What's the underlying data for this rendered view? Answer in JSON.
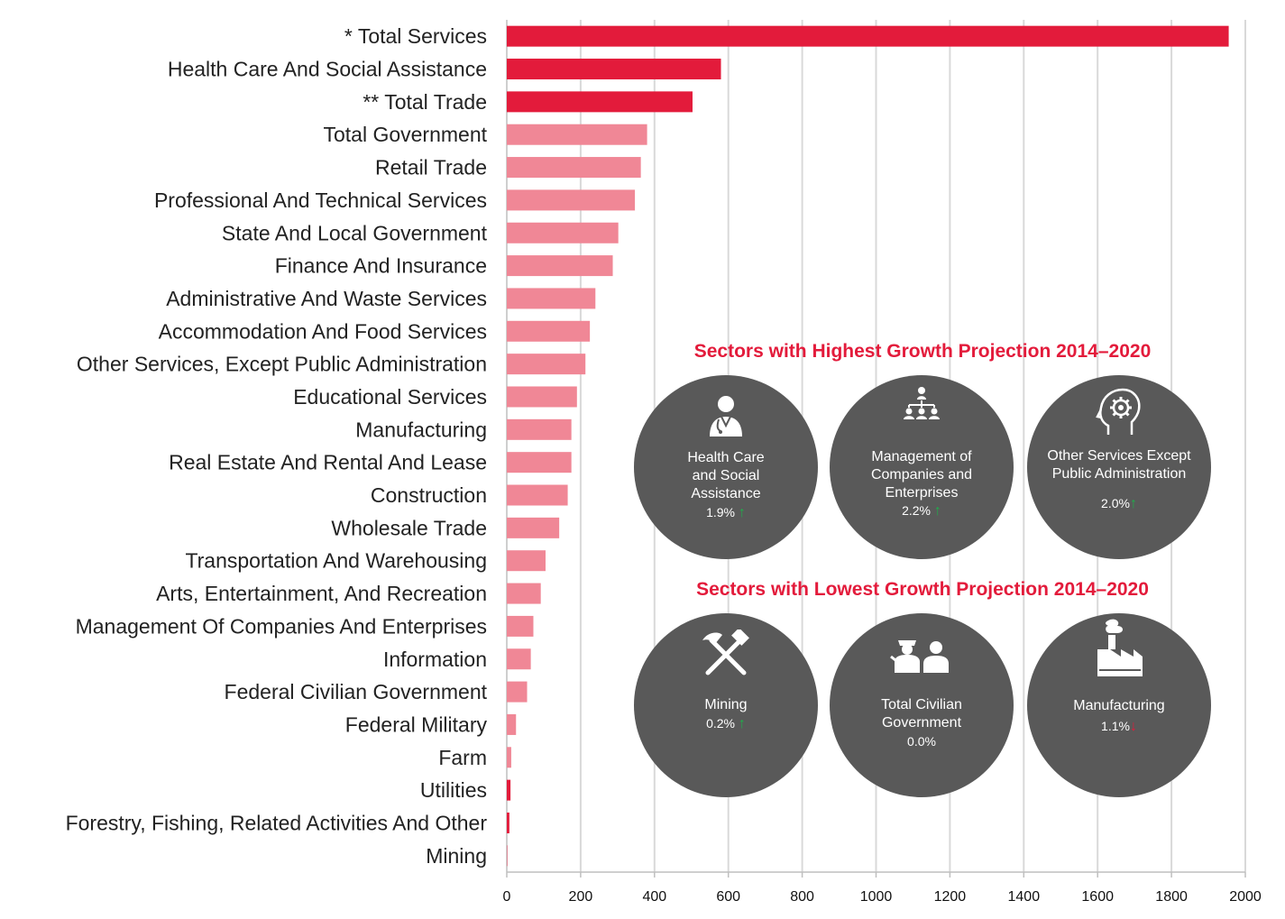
{
  "chart_data": {
    "type": "bar",
    "orientation": "horizontal",
    "categories": [
      "* Total Services",
      "Health Care And Social Assistance",
      "** Total Trade",
      "Total Government",
      "Retail Trade",
      "Professional And Technical Services",
      "State And Local Government",
      "Finance And Insurance",
      "Administrative And Waste Services",
      "Accommodation And Food Services",
      "Other Services, Except Public Administration",
      "Educational Services",
      "Manufacturing",
      "Real Estate And Rental And Lease",
      "Construction",
      "Wholesale Trade",
      "Transportation And Warehousing",
      "Arts, Entertainment, And Recreation",
      "Management Of Companies And Enterprises",
      "Information",
      "Federal Civilian Government",
      "Federal Military",
      "Farm",
      "Utilities",
      "Forestry, Fishing, Related Activities And Other",
      "Mining"
    ],
    "values": [
      1955,
      580,
      503,
      380,
      363,
      347,
      302,
      287,
      240,
      225,
      213,
      190,
      175,
      175,
      165,
      142,
      105,
      92,
      72,
      65,
      55,
      25,
      12,
      10,
      7,
      1
    ],
    "bar_colors": [
      "#e31b3b",
      "#e31b3b",
      "#e31b3b",
      "#f08796",
      "#f08796",
      "#f08796",
      "#f08796",
      "#f08796",
      "#f08796",
      "#f08796",
      "#f08796",
      "#f08796",
      "#f08796",
      "#f08796",
      "#f08796",
      "#f08796",
      "#f08796",
      "#f08796",
      "#f08796",
      "#f08796",
      "#f08796",
      "#f08796",
      "#f08796",
      "#e31b3b",
      "#e31b3b",
      "#e31b3b"
    ],
    "xlim": [
      0,
      2000
    ],
    "xticks": [
      "0",
      "200",
      "400",
      "600",
      "800",
      "1000",
      "1200",
      "1400",
      "1600",
      "1800",
      "2000"
    ],
    "grid": true,
    "title": "",
    "xlabel": "",
    "ylabel": ""
  },
  "highest": {
    "title": "Sectors with Highest Growth Projection 2014–2020",
    "items": [
      {
        "name_lines": [
          "Health Care",
          "and Social",
          "Assistance"
        ],
        "pct": "1.9%",
        "trend": "up",
        "icon": "doctor-icon"
      },
      {
        "name_lines": [
          "Management of",
          "Companies and",
          "Enterprises"
        ],
        "pct": "2.2%",
        "trend": "up",
        "icon": "hierarchy-icon"
      },
      {
        "name_lines": [
          "Other Services Except",
          "Public Administration"
        ],
        "pct": "2.0%",
        "trend": "up",
        "icon": "head-gear-icon"
      }
    ]
  },
  "lowest": {
    "title": "Sectors with Lowest Growth Projection 2014–2020",
    "items": [
      {
        "name_lines": [
          "Mining"
        ],
        "pct": "0.2%",
        "trend": "up",
        "icon": "hammer-pickaxe-icon"
      },
      {
        "name_lines": [
          "Total Civilian",
          "Government"
        ],
        "pct": "0.0%",
        "trend": "none",
        "icon": "people-icon"
      },
      {
        "name_lines": [
          "Manufacturing"
        ],
        "pct": "1.1%",
        "trend": "down",
        "icon": "factory-icon"
      }
    ]
  },
  "colors": {
    "accent": "#e31b3b",
    "bar_light": "#f08796",
    "circle": "#595959",
    "up": "#1fae4b",
    "down": "#e31b3b"
  },
  "arrows": {
    "up": "↑",
    "down": "↓"
  }
}
